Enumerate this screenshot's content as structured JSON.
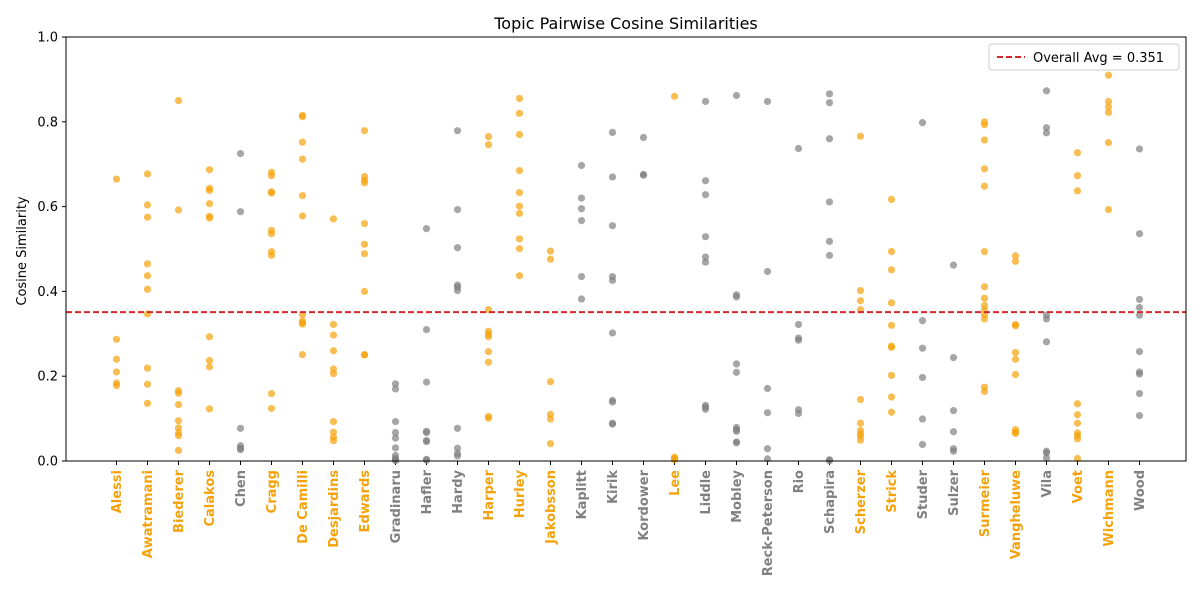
{
  "chart_data": {
    "type": "scatter",
    "title": "Topic Pairwise Cosine Similarities",
    "xlabel": "",
    "ylabel": "Cosine Similarity",
    "ylim": [
      0,
      1
    ],
    "yticks": [
      "0.0",
      "0.2",
      "0.4",
      "0.6",
      "0.8",
      "1.0"
    ],
    "grid": false,
    "legend": {
      "placement": "top-right",
      "label": "Overall Avg = 0.351"
    },
    "reference_line": {
      "y": 0.351,
      "style": "dashed",
      "color": "#d62728"
    },
    "colors": {
      "highlight": "#f5a20a",
      "default": "#808080"
    },
    "categories": [
      {
        "name": "Alessi",
        "highlight": true,
        "values": [
          0.665,
          0.287,
          0.24,
          0.21,
          0.184,
          0.178
        ]
      },
      {
        "name": "Awatramani",
        "highlight": true,
        "values": [
          0.677,
          0.604,
          0.575,
          0.465,
          0.437,
          0.405,
          0.347,
          0.219,
          0.181,
          0.136
        ]
      },
      {
        "name": "Biederer",
        "highlight": true,
        "values": [
          0.85,
          0.592,
          0.166,
          0.16,
          0.133,
          0.095,
          0.078,
          0.066,
          0.06,
          0.025
        ]
      },
      {
        "name": "Calakos",
        "highlight": true,
        "values": [
          0.687,
          0.643,
          0.638,
          0.607,
          0.577,
          0.573,
          0.293,
          0.237,
          0.222,
          0.123
        ]
      },
      {
        "name": "Chen",
        "highlight": false,
        "values": [
          0.725,
          0.588,
          0.077,
          0.036,
          0.03,
          0.027
        ]
      },
      {
        "name": "Cragg",
        "highlight": true,
        "values": [
          0.681,
          0.673,
          0.635,
          0.632,
          0.544,
          0.536,
          0.494,
          0.485,
          0.159,
          0.124
        ]
      },
      {
        "name": "De Camilli",
        "highlight": true,
        "values": [
          0.815,
          0.812,
          0.752,
          0.712,
          0.626,
          0.578,
          0.345,
          0.33,
          0.326,
          0.323,
          0.251
        ]
      },
      {
        "name": "Desjardins",
        "highlight": true,
        "values": [
          0.571,
          0.322,
          0.297,
          0.26,
          0.217,
          0.206,
          0.093,
          0.068,
          0.056,
          0.048
        ]
      },
      {
        "name": "Edwards",
        "highlight": true,
        "values": [
          0.779,
          0.671,
          0.662,
          0.656,
          0.56,
          0.511,
          0.489,
          0.4,
          0.251,
          0.25
        ]
      },
      {
        "name": "Gradinaru",
        "highlight": false,
        "values": [
          0.182,
          0.17,
          0.093,
          0.067,
          0.054,
          0.031,
          0.013,
          0.006,
          0.003,
          0.001
        ]
      },
      {
        "name": "Hafler",
        "highlight": false,
        "values": [
          0.548,
          0.31,
          0.186,
          0.07,
          0.067,
          0.048,
          0.046,
          0.004,
          0.002
        ]
      },
      {
        "name": "Hardy",
        "highlight": false,
        "values": [
          0.779,
          0.593,
          0.503,
          0.415,
          0.41,
          0.402,
          0.077,
          0.03,
          0.018,
          0.012
        ]
      },
      {
        "name": "Harper",
        "highlight": true,
        "values": [
          0.765,
          0.746,
          0.357,
          0.306,
          0.299,
          0.293,
          0.258,
          0.233,
          0.105,
          0.101
        ]
      },
      {
        "name": "Hurley",
        "highlight": true,
        "values": [
          0.855,
          0.82,
          0.77,
          0.685,
          0.633,
          0.601,
          0.584,
          0.524,
          0.501,
          0.437
        ]
      },
      {
        "name": "Jakobsson",
        "highlight": true,
        "values": [
          0.495,
          0.476,
          0.187,
          0.11,
          0.099,
          0.041
        ]
      },
      {
        "name": "Kaplitt",
        "highlight": false,
        "values": [
          0.697,
          0.62,
          0.595,
          0.567,
          0.435,
          0.382
        ]
      },
      {
        "name": "Kirik",
        "highlight": false,
        "values": [
          0.775,
          0.67,
          0.555,
          0.435,
          0.426,
          0.302,
          0.143,
          0.139,
          0.089,
          0.087
        ]
      },
      {
        "name": "Kordower",
        "highlight": false,
        "values": [
          0.763,
          0.676,
          0.674
        ]
      },
      {
        "name": "Lee",
        "highlight": true,
        "values": [
          0.86,
          0.009,
          0.006,
          0.003
        ]
      },
      {
        "name": "Liddle",
        "highlight": false,
        "values": [
          0.848,
          0.661,
          0.628,
          0.529,
          0.481,
          0.469,
          0.131,
          0.127,
          0.122
        ]
      },
      {
        "name": "Mobley",
        "highlight": false,
        "values": [
          0.862,
          0.392,
          0.387,
          0.229,
          0.209,
          0.079,
          0.074,
          0.07,
          0.045,
          0.043
        ]
      },
      {
        "name": "Reck-Peterson",
        "highlight": false,
        "values": [
          0.848,
          0.447,
          0.171,
          0.114,
          0.029,
          0.005
        ]
      },
      {
        "name": "Rio",
        "highlight": false,
        "values": [
          0.737,
          0.322,
          0.29,
          0.285,
          0.121,
          0.112
        ]
      },
      {
        "name": "Schapira",
        "highlight": false,
        "values": [
          0.866,
          0.845,
          0.76,
          0.611,
          0.518,
          0.485,
          0.003,
          0.001
        ]
      },
      {
        "name": "Scherzer",
        "highlight": true,
        "values": [
          0.766,
          0.402,
          0.378,
          0.357,
          0.145,
          0.089,
          0.072,
          0.064,
          0.059,
          0.049
        ]
      },
      {
        "name": "Strick",
        "highlight": true,
        "values": [
          0.617,
          0.494,
          0.451,
          0.373,
          0.32,
          0.271,
          0.268,
          0.202,
          0.151,
          0.115
        ]
      },
      {
        "name": "Studer",
        "highlight": false,
        "values": [
          0.798,
          0.331,
          0.266,
          0.197,
          0.099,
          0.039
        ]
      },
      {
        "name": "Sulzer",
        "highlight": false,
        "values": [
          0.462,
          0.244,
          0.119,
          0.069,
          0.029,
          0.023
        ]
      },
      {
        "name": "Surmeier",
        "highlight": true,
        "values": [
          0.8,
          0.793,
          0.757,
          0.689,
          0.648,
          0.494,
          0.411,
          0.384,
          0.367,
          0.356,
          0.345,
          0.335,
          0.174,
          0.164
        ]
      },
      {
        "name": "Vangheluwe",
        "highlight": true,
        "values": [
          0.484,
          0.471,
          0.322,
          0.319,
          0.256,
          0.24,
          0.204,
          0.074,
          0.068,
          0.065
        ]
      },
      {
        "name": "Vila",
        "highlight": false,
        "values": [
          0.873,
          0.786,
          0.774,
          0.344,
          0.335,
          0.281,
          0.023,
          0.019,
          0.007
        ]
      },
      {
        "name": "Voet",
        "highlight": true,
        "values": [
          0.727,
          0.673,
          0.637,
          0.135,
          0.109,
          0.089,
          0.066,
          0.06,
          0.052,
          0.006
        ]
      },
      {
        "name": "Wichmann",
        "highlight": true,
        "values": [
          0.91,
          0.848,
          0.835,
          0.822,
          0.751,
          0.593
        ]
      },
      {
        "name": "Wood",
        "highlight": false,
        "values": [
          0.736,
          0.536,
          0.381,
          0.362,
          0.344,
          0.258,
          0.21,
          0.205,
          0.159,
          0.107
        ]
      }
    ]
  }
}
